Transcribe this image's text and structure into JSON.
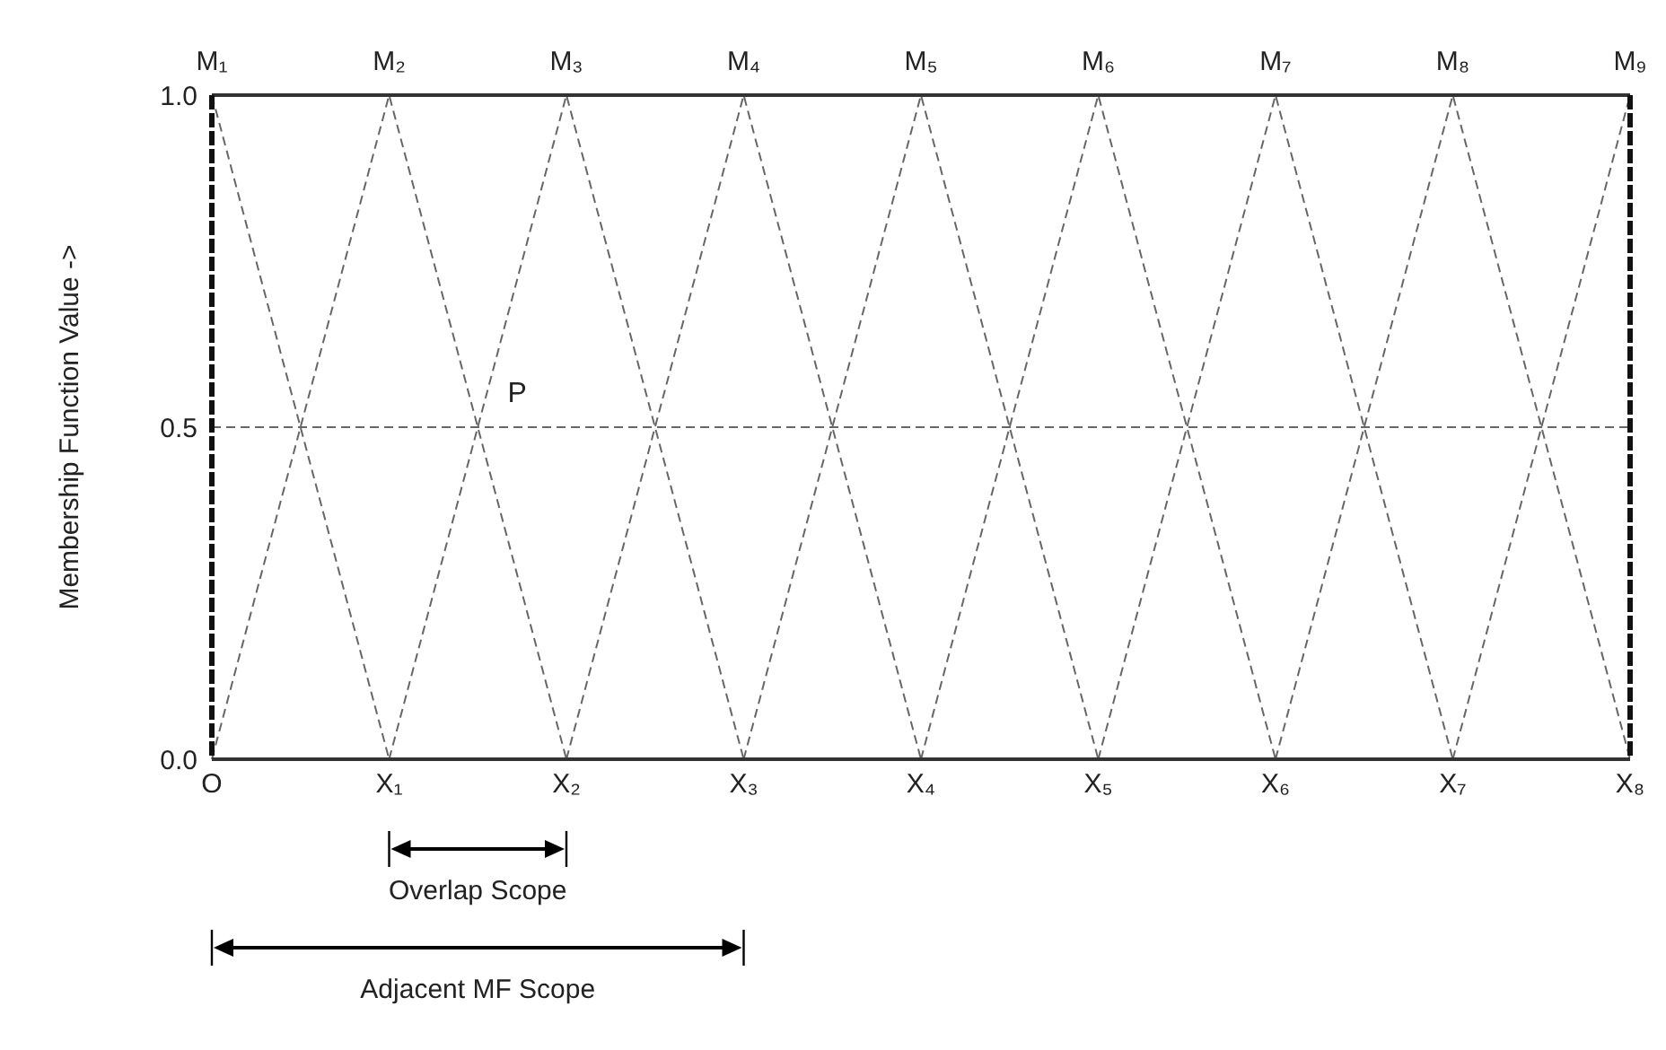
{
  "chart_data": {
    "type": "line",
    "ylabel": "Membership Function Value ->",
    "categories": [
      "O",
      "X₁",
      "X₂",
      "X₃",
      "X₄",
      "X₅",
      "X₆",
      "X₇",
      "X₈"
    ],
    "ylim": [
      0,
      1
    ],
    "yticks": [
      {
        "value": 0,
        "label": "0.0"
      },
      {
        "value": 0.5,
        "label": "0.5"
      },
      {
        "value": 1,
        "label": "1.0"
      }
    ],
    "grid": false,
    "marker": "none",
    "line_style": "dashed",
    "series": [
      {
        "name": "M₁",
        "color": "#666666",
        "values": [
          1,
          0,
          null,
          null,
          null,
          null,
          null,
          null,
          null
        ]
      },
      {
        "name": "M₂",
        "color": "#666666",
        "values": [
          0,
          1,
          0,
          null,
          null,
          null,
          null,
          null,
          null
        ]
      },
      {
        "name": "M₃",
        "color": "#666666",
        "values": [
          null,
          0,
          1,
          0,
          null,
          null,
          null,
          null,
          null
        ]
      },
      {
        "name": "M₄",
        "color": "#666666",
        "values": [
          null,
          null,
          0,
          1,
          0,
          null,
          null,
          null,
          null
        ]
      },
      {
        "name": "M₅",
        "color": "#666666",
        "values": [
          null,
          null,
          null,
          0,
          1,
          0,
          null,
          null,
          null
        ]
      },
      {
        "name": "M₆",
        "color": "#666666",
        "values": [
          null,
          null,
          null,
          null,
          0,
          1,
          0,
          null,
          null
        ]
      },
      {
        "name": "M₇",
        "color": "#666666",
        "values": [
          null,
          null,
          null,
          null,
          null,
          0,
          1,
          0,
          null
        ]
      },
      {
        "name": "M₈",
        "color": "#666666",
        "values": [
          null,
          null,
          null,
          null,
          null,
          null,
          0,
          1,
          0
        ]
      },
      {
        "name": "M₉",
        "color": "#666666",
        "values": [
          null,
          null,
          null,
          null,
          null,
          null,
          null,
          0,
          1
        ]
      }
    ],
    "ref_lines": [
      {
        "axis": "y",
        "value": 0.5,
        "color": "#666666",
        "line_style": "dashed"
      }
    ],
    "annotations": [
      "P",
      "Overlap Scope",
      "Adjacent MF Scope"
    ]
  }
}
